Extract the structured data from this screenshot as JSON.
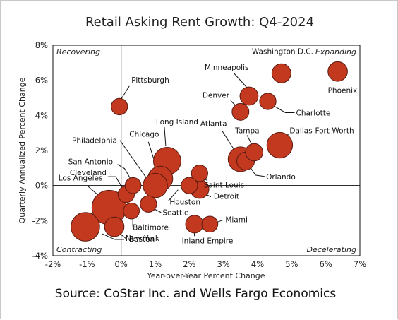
{
  "chart_data": {
    "type": "scatter",
    "title": "Retail Asking Rent Growth: Q4-2024",
    "source": "Source: CoStar Inc. and Wells Fargo Economics",
    "xlabel": "Year-over-Year Percent Change",
    "ylabel": "Quarterly Annualized Percent Change",
    "xlim": [
      -2,
      7
    ],
    "ylim": [
      -4,
      8
    ],
    "x_ticks": [
      "-2%",
      "-1%",
      "0%",
      "1%",
      "2%",
      "3%",
      "4%",
      "5%",
      "6%",
      "7%"
    ],
    "y_ticks": [
      "-4%",
      "-2%",
      "0%",
      "2%",
      "4%",
      "6%",
      "8%"
    ],
    "quadrants": {
      "top_left": "Recovering",
      "top_right": "Expanding",
      "bottom_left": "Contracting",
      "bottom_right": "Decelerating"
    },
    "points": [
      {
        "label": "Washington D.C.",
        "x": 4.7,
        "y": 6.4,
        "size": 2.1
      },
      {
        "label": "Phoenix",
        "x": 6.35,
        "y": 6.5,
        "size": 2.2
      },
      {
        "label": "Minneapolis",
        "x": 3.75,
        "y": 5.1,
        "size": 1.9
      },
      {
        "label": "Denver",
        "x": 3.5,
        "y": 4.2,
        "size": 1.6
      },
      {
        "label": "Charlotte",
        "x": 4.3,
        "y": 4.8,
        "size": 1.5
      },
      {
        "label": "Pittsburgh",
        "x": -0.05,
        "y": 4.5,
        "size": 1.5
      },
      {
        "label": "Tampa",
        "x": 3.9,
        "y": 1.9,
        "size": 1.7
      },
      {
        "label": "Dallas-Fort Worth",
        "x": 4.65,
        "y": 2.3,
        "size": 3.6
      },
      {
        "label": "Atlanta",
        "x": 3.5,
        "y": 1.5,
        "size": 3.4
      },
      {
        "label": "Orlando",
        "x": 3.65,
        "y": 1.4,
        "size": 1.8
      },
      {
        "label": "Long Island",
        "x": 1.35,
        "y": 1.4,
        "size": 4.0
      },
      {
        "label": "Chicago",
        "x": 1.15,
        "y": 0.4,
        "size": 3.4
      },
      {
        "label": "Philadelphia",
        "x": 1.0,
        "y": 0.0,
        "size": 3.3
      },
      {
        "label": "Saint Louis",
        "x": 2.3,
        "y": 0.7,
        "size": 1.5
      },
      {
        "label": "Detroit",
        "x": 2.3,
        "y": -0.2,
        "size": 2.0
      },
      {
        "label": "Houston",
        "x": 2.0,
        "y": 0.0,
        "size": 1.5
      },
      {
        "label": "San Antonio",
        "x": 0.35,
        "y": 0.0,
        "size": 1.4
      },
      {
        "label": "Cleveland",
        "x": 0.15,
        "y": -0.5,
        "size": 1.5
      },
      {
        "label": "Seattle",
        "x": 0.8,
        "y": -1.05,
        "size": 1.5
      },
      {
        "label": "Baltimore",
        "x": 0.3,
        "y": -1.45,
        "size": 1.4
      },
      {
        "label": "Los Angeles",
        "x": -0.35,
        "y": -1.25,
        "size": 5.6
      },
      {
        "label": "New York",
        "x": -1.05,
        "y": -2.35,
        "size": 4.3
      },
      {
        "label": "Boston",
        "x": -0.2,
        "y": -2.35,
        "size": 2.2
      },
      {
        "label": "Inland Empire",
        "x": 2.15,
        "y": -2.2,
        "size": 1.8
      },
      {
        "label": "Miami",
        "x": 2.6,
        "y": -2.2,
        "size": 1.4
      }
    ]
  }
}
